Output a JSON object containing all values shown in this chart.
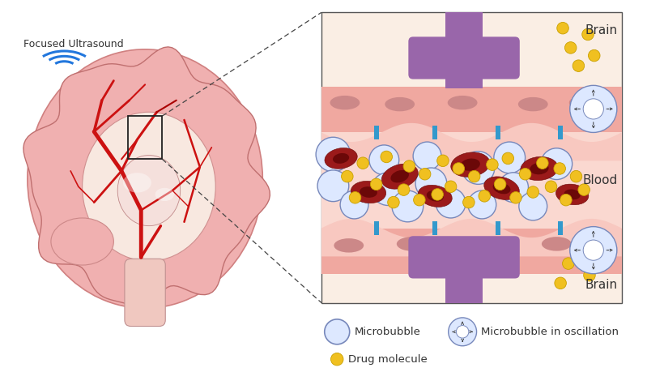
{
  "bg_color": "#ffffff",
  "brain_tissue_color": "#fce8e0",
  "vessel_wall_color": "#f0a8a0",
  "vessel_wall_inner": "#f8c8c0",
  "lumen_color": "#fad8d0",
  "rbc_color": "#9b1a1a",
  "rbc_dark": "#6b0808",
  "microbubble_face": "#dde8ff",
  "microbubble_edge": "#7788bb",
  "drug_color": "#f0c020",
  "drug_edge": "#c8a000",
  "tight_junction_color": "#3399cc",
  "purple_color": "#9966aa",
  "purple_dark": "#7744aa",
  "ultrasound_color": "#2277dd",
  "text_color": "#333333",
  "brain_pink_outer": "#f0b0b0",
  "brain_pink_mid": "#e89898",
  "brain_red_vessel": "#cc1111",
  "brain_red_dark": "#990000",
  "brain_interior": "#e8c0c0",
  "brain_white_matter": "#f8e8e0",
  "nucleus_color": "#cc8888",
  "bump_color": "#eeaaaa",
  "oscillation_label": "Microbubble in oscillation",
  "microbubble_label": "Microbubble",
  "drug_label": "Drug molecule",
  "brain_label": "Brain",
  "blood_label": "Blood",
  "ultrasound_label": "Focused Ultrasound"
}
